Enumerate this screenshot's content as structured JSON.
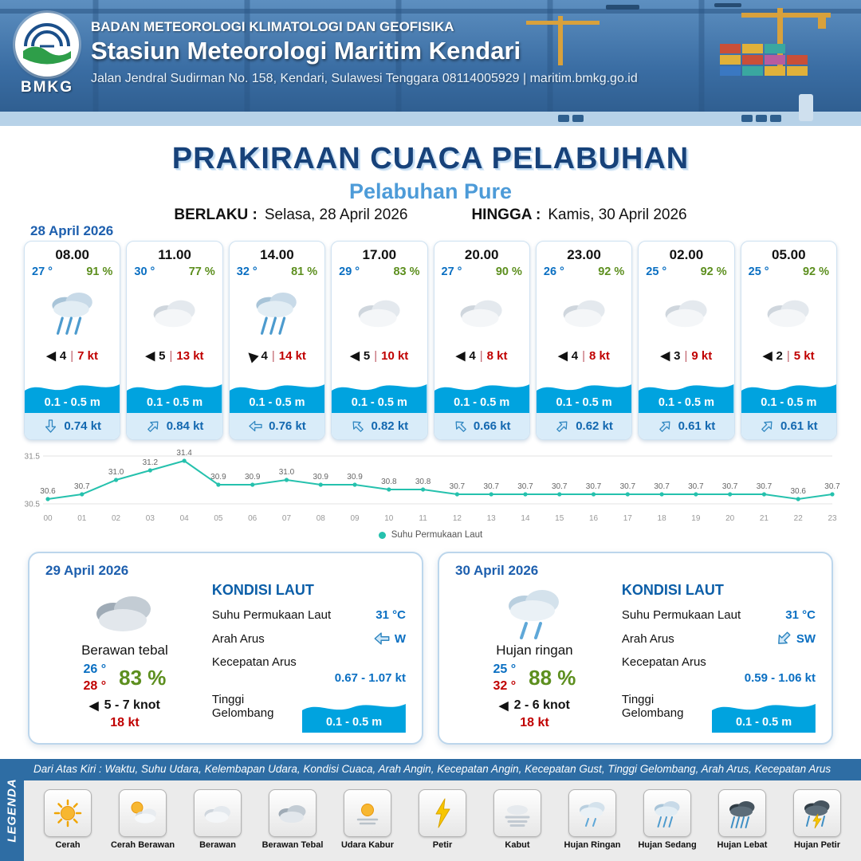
{
  "header": {
    "logo_label": "BMKG",
    "org": "BADAN METEOROLOGI KLIMATOLOGI DAN GEOFISIKA",
    "station": "Stasiun Meteorologi Maritim Kendari",
    "address": "Jalan Jendral Sudirman No. 158, Kendari, Sulawesi Tenggara  08114005929 | maritim.bmkg.go.id"
  },
  "title": {
    "main": "PRAKIRAAN CUACA PELABUHAN",
    "subtitle": "Pelabuhan Pure",
    "berlaku_label": "BERLAKU :",
    "berlaku_value": "Selasa, 28 April 2026",
    "hingga_label": "HINGGA :",
    "hingga_value": "Kamis, 30 April 2026"
  },
  "forecast_date": "28 April 2026",
  "cards": [
    {
      "time": "08.00",
      "temp": "27 °",
      "humidity": "91 %",
      "icon": "rain-med",
      "wind_bft": "4",
      "wind_kt": "7 kt",
      "wind_dir_deg": 0,
      "wave": "0.1 - 0.5 m",
      "current": "0.74 kt",
      "current_dir_deg": 90
    },
    {
      "time": "11.00",
      "temp": "30 °",
      "humidity": "77 %",
      "icon": "cloud",
      "wind_bft": "5",
      "wind_kt": "13 kt",
      "wind_dir_deg": 0,
      "wave": "0.1 - 0.5 m",
      "current": "0.84 kt",
      "current_dir_deg": -45
    },
    {
      "time": "14.00",
      "temp": "32 °",
      "humidity": "81 %",
      "icon": "rain-med",
      "wind_bft": "4",
      "wind_kt": "14 kt",
      "wind_dir_deg": 45,
      "wave": "0.1 - 0.5 m",
      "current": "0.76 kt",
      "current_dir_deg": 180
    },
    {
      "time": "17.00",
      "temp": "29 °",
      "humidity": "83 %",
      "icon": "cloud",
      "wind_bft": "5",
      "wind_kt": "10 kt",
      "wind_dir_deg": 0,
      "wave": "0.1 - 0.5 m",
      "current": "0.82 kt",
      "current_dir_deg": -135
    },
    {
      "time": "20.00",
      "temp": "27 °",
      "humidity": "90 %",
      "icon": "cloud",
      "wind_bft": "4",
      "wind_kt": "8 kt",
      "wind_dir_deg": 0,
      "wave": "0.1 - 0.5 m",
      "current": "0.66 kt",
      "current_dir_deg": -135
    },
    {
      "time": "23.00",
      "temp": "26 °",
      "humidity": "92 %",
      "icon": "cloud",
      "wind_bft": "4",
      "wind_kt": "8 kt",
      "wind_dir_deg": 0,
      "wave": "0.1 - 0.5 m",
      "current": "0.62 kt",
      "current_dir_deg": -45
    },
    {
      "time": "02.00",
      "temp": "25 °",
      "humidity": "92 %",
      "icon": "cloud",
      "wind_bft": "3",
      "wind_kt": "9 kt",
      "wind_dir_deg": 0,
      "wave": "0.1 - 0.5 m",
      "current": "0.61 kt",
      "current_dir_deg": -45
    },
    {
      "time": "05.00",
      "temp": "25 °",
      "humidity": "92 %",
      "icon": "cloud",
      "wind_bft": "2",
      "wind_kt": "5 kt",
      "wind_dir_deg": 0,
      "wave": "0.1 - 0.5 m",
      "current": "0.61 kt",
      "current_dir_deg": -45
    }
  ],
  "chart_data": {
    "type": "line",
    "series_label": "Suhu Permukaan Laut",
    "x": [
      "00",
      "01",
      "02",
      "03",
      "04",
      "05",
      "06",
      "07",
      "08",
      "09",
      "10",
      "11",
      "12",
      "13",
      "14",
      "15",
      "16",
      "17",
      "18",
      "19",
      "20",
      "21",
      "22",
      "23"
    ],
    "values": [
      30.6,
      30.7,
      31.0,
      31.2,
      31.4,
      30.9,
      30.9,
      31.0,
      30.9,
      30.9,
      30.8,
      30.8,
      30.7,
      30.7,
      30.7,
      30.7,
      30.7,
      30.7,
      30.7,
      30.7,
      30.7,
      30.7,
      30.6,
      30.7
    ],
    "ylim": [
      30.5,
      31.5
    ],
    "yticks": [
      30.5,
      31.5
    ],
    "line_color": "#25c1ad",
    "grid": true,
    "legend_position": "bottom-center"
  },
  "panels": [
    {
      "date": "29 April 2026",
      "icon": "cloud-thick",
      "condition": "Berawan tebal",
      "temp_min": "26 °",
      "temp_max": "28 °",
      "humidity": "83 %",
      "wind_range": "5  - 7 knot",
      "gust": "18 kt",
      "sea_title": "KONDISI LAUT",
      "sst_label": "Suhu Permukaan Laut",
      "sst": "31 °C",
      "current_dir_label": "Arah Arus",
      "current_dir": "W",
      "current_dir_deg": 180,
      "current_speed_label": "Kecepatan Arus",
      "current_speed": "0.67 - 1.07 kt",
      "wave_label": "Tinggi Gelombang",
      "wave": "0.1 - 0.5 m"
    },
    {
      "date": "30 April 2026",
      "icon": "rain-light",
      "condition": "Hujan ringan",
      "temp_min": "25 °",
      "temp_max": "32 °",
      "humidity": "88 %",
      "wind_range": "2  - 6 knot",
      "gust": "18 kt",
      "sea_title": "KONDISI LAUT",
      "sst_label": "Suhu Permukaan Laut",
      "sst": "31 °C",
      "current_dir_label": "Arah Arus",
      "current_dir": "SW",
      "current_dir_deg": 135,
      "current_speed_label": "Kecepatan Arus",
      "current_speed": "0.59  - 1.06 kt",
      "wave_label": "Tinggi Gelombang",
      "wave": "0.1 - 0.5 m"
    }
  ],
  "legend": {
    "vertical_label": "LEGENDA",
    "note": "Dari Atas Kiri : Waktu, Suhu Udara, Kelembapan Udara, Kondisi Cuaca, Arah Angin, Kecepatan Angin, Kecepatan Gust, Tinggi Gelombang, Arah Arus, Kecepatan Arus",
    "items": [
      {
        "label": "Cerah",
        "icon": "sun"
      },
      {
        "label": "Cerah Berawan",
        "icon": "sun-cloud"
      },
      {
        "label": "Berawan",
        "icon": "cloud"
      },
      {
        "label": "Berawan Tebal",
        "icon": "cloud-thick"
      },
      {
        "label": "Udara Kabur",
        "icon": "haze"
      },
      {
        "label": "Petir",
        "icon": "bolt"
      },
      {
        "label": "Kabut",
        "icon": "fog"
      },
      {
        "label": "Hujan Ringan",
        "icon": "rain-light"
      },
      {
        "label": "Hujan Sedang",
        "icon": "rain-med"
      },
      {
        "label": "Hujan Lebat",
        "icon": "rain-heavy"
      },
      {
        "label": "Hujan Petir",
        "icon": "rain-thunder"
      }
    ]
  },
  "colors": {
    "temp_blue": "#0a6fc2",
    "humidity_green": "#5d8f1f",
    "wind_red": "#c00000",
    "wave_blue": "#00a3df",
    "title_navy": "#17427a",
    "subtitle_blue": "#4d9bd8",
    "legend_bar_blue": "#2e6da4",
    "chart_teal": "#25c1ad"
  }
}
